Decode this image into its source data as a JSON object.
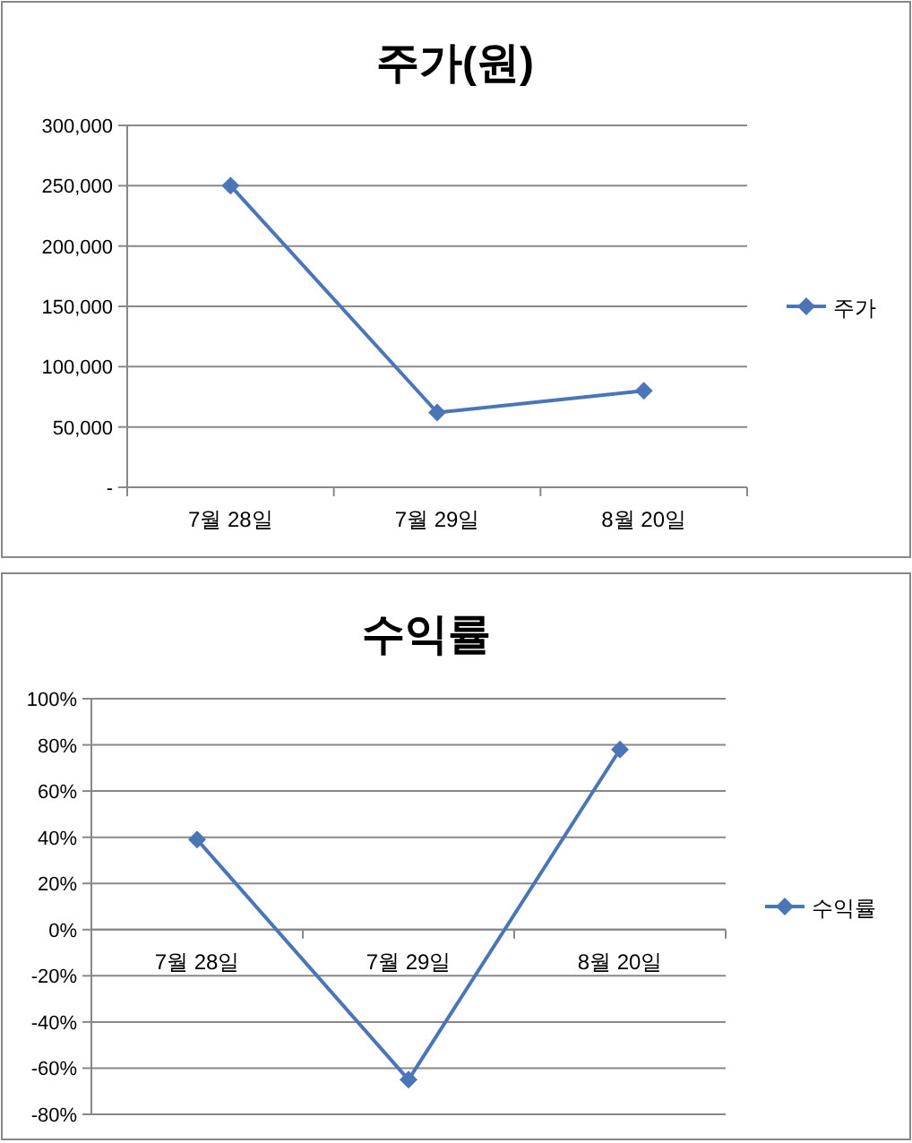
{
  "chart_data": [
    {
      "type": "line",
      "title": "주가(원)",
      "categories": [
        "7월 28일",
        "7월 29일",
        "8월 20일"
      ],
      "series": [
        {
          "name": "주가",
          "color": "#4a76b8",
          "values": [
            250000,
            62000,
            80000
          ]
        }
      ],
      "ylim": [
        0,
        300000
      ],
      "yticks": [
        {
          "value": 0,
          "label": "-"
        },
        {
          "value": 50000,
          "label": "50,000"
        },
        {
          "value": 100000,
          "label": "100,000"
        },
        {
          "value": 150000,
          "label": "150,000"
        },
        {
          "value": 200000,
          "label": "200,000"
        },
        {
          "value": 250000,
          "label": "250,000"
        },
        {
          "value": 300000,
          "label": "300,000"
        }
      ],
      "grid": "y",
      "legend": "right",
      "marker": "diamond",
      "line_style": "solid"
    },
    {
      "type": "line",
      "title": "수익률",
      "categories": [
        "7월 28일",
        "7월 29일",
        "8월 20일"
      ],
      "series": [
        {
          "name": "수익률",
          "color": "#4a76b8",
          "values": [
            39,
            -65,
            78
          ]
        }
      ],
      "ylim": [
        -80,
        100
      ],
      "yticks": [
        {
          "value": -80,
          "label": "-80%"
        },
        {
          "value": -60,
          "label": "-60%"
        },
        {
          "value": -40,
          "label": "-40%"
        },
        {
          "value": -20,
          "label": "-20%"
        },
        {
          "value": 0,
          "label": "0%"
        },
        {
          "value": 20,
          "label": "20%"
        },
        {
          "value": 40,
          "label": "40%"
        },
        {
          "value": 60,
          "label": "60%"
        },
        {
          "value": 80,
          "label": "80%"
        },
        {
          "value": 100,
          "label": "100%"
        }
      ],
      "grid": "y",
      "legend": "right",
      "marker": "diamond",
      "line_style": "solid"
    }
  ]
}
